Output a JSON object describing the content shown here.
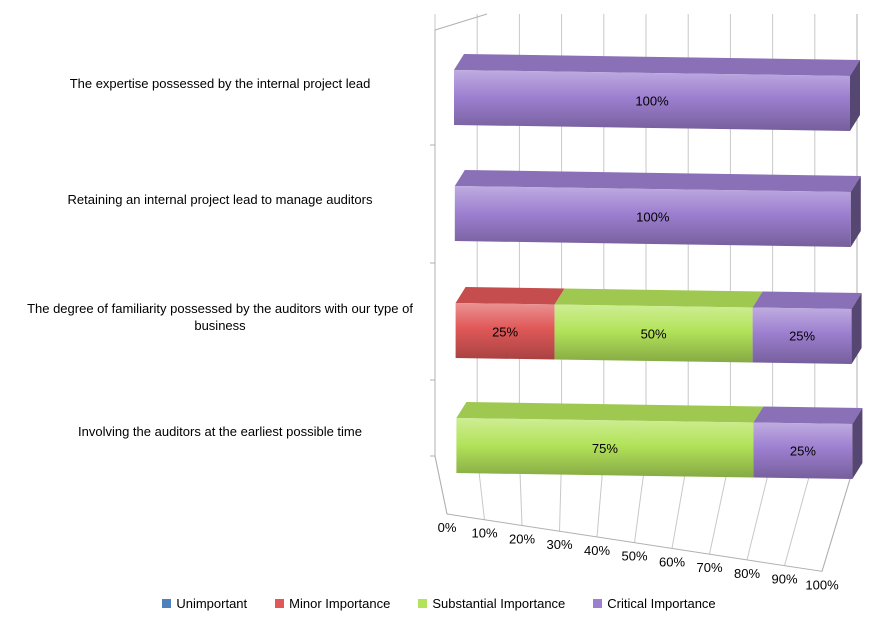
{
  "chart_data": {
    "type": "bar",
    "orientation": "horizontal",
    "stacked": true,
    "percent": true,
    "three_d": true,
    "title": "",
    "xlabel": "",
    "ylabel": "",
    "xlim": [
      0,
      100
    ],
    "x_ticks": [
      "0%",
      "10%",
      "20%",
      "30%",
      "40%",
      "50%",
      "60%",
      "70%",
      "80%",
      "90%",
      "100%"
    ],
    "categories": [
      "The expertise possessed by the internal project lead",
      "Retaining an internal project lead to manage auditors",
      "The degree of familiarity possessed by the auditors with our type of business",
      "Involving the auditors at the earliest possible time"
    ],
    "series": [
      {
        "name": "Unimportant",
        "color": "#4f81bd",
        "values": [
          0,
          0,
          0,
          0
        ]
      },
      {
        "name": "Minor Importance",
        "color": "#e05858",
        "values": [
          0,
          0,
          25,
          0
        ]
      },
      {
        "name": "Substantial Importance",
        "color": "#b3e35a",
        "values": [
          0,
          0,
          50,
          75
        ]
      },
      {
        "name": "Critical Importance",
        "color": "#9d7fd0",
        "values": [
          100,
          100,
          25,
          25
        ]
      }
    ],
    "data_labels": true,
    "legend_position": "bottom",
    "grid": true
  }
}
